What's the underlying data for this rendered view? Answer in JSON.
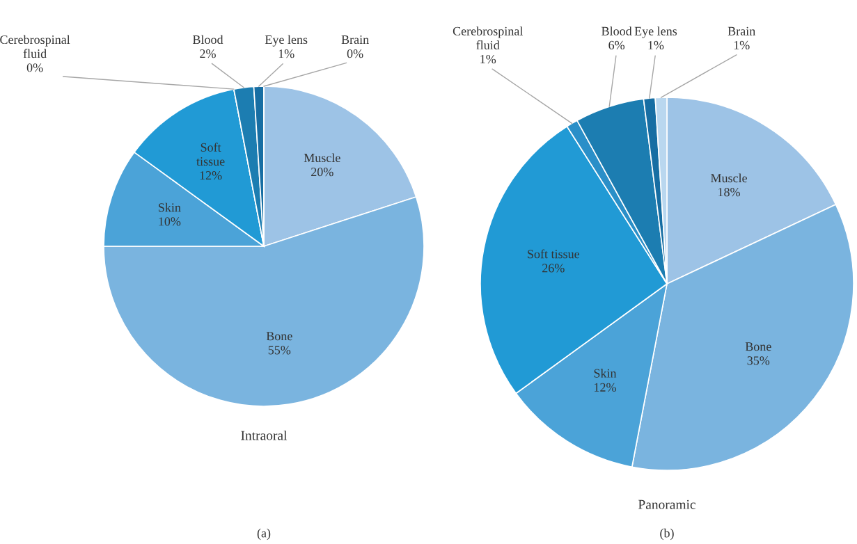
{
  "chart_data": [
    {
      "type": "pie",
      "title": "Intraoral",
      "categories": [
        "Muscle",
        "Bone",
        "Skin",
        "Soft tissue",
        "Cerebrospinal fluid",
        "Blood",
        "Eye lens",
        "Brain"
      ],
      "values": [
        20,
        55,
        10,
        12,
        0,
        2,
        1,
        0
      ],
      "value_labels": [
        "20%",
        "55%",
        "10%",
        "12%",
        "0%",
        "2%",
        "1%",
        "0%"
      ],
      "colors": [
        "#9dc3e6",
        "#7ab4df",
        "#4ba3d8",
        "#219ad5",
        "#2a8fc8",
        "#1c7db1",
        "#176ea3",
        "#b9d7ef"
      ],
      "annotations": [
        "(a)"
      ]
    },
    {
      "type": "pie",
      "title": "Panoramic",
      "categories": [
        "Muscle",
        "Bone",
        "Skin",
        "Soft tissue",
        "Cerebrospinal fluid",
        "Blood",
        "Eye lens",
        "Brain"
      ],
      "values": [
        18,
        35,
        12,
        26,
        1,
        6,
        1,
        1
      ],
      "value_labels": [
        "18%",
        "35%",
        "12%",
        "26%",
        "1%",
        "6%",
        "1%",
        "1%"
      ],
      "colors": [
        "#9dc3e6",
        "#7ab4df",
        "#4ba3d8",
        "#219ad5",
        "#2a8fc8",
        "#1c7db1",
        "#176ea3",
        "#b9d7ef"
      ],
      "annotations": [
        "(b)"
      ]
    }
  ]
}
